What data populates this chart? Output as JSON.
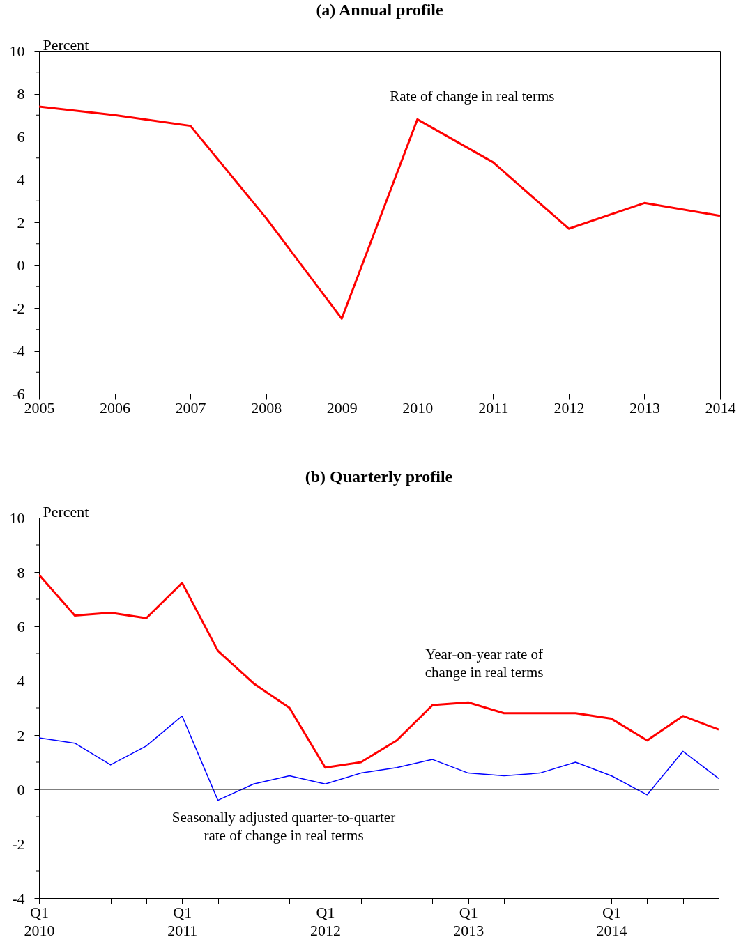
{
  "chart_data": [
    {
      "type": "line",
      "title": "(a) Annual profile",
      "ylabel": "Percent",
      "x": [
        2005,
        2006,
        2007,
        2008,
        2009,
        2010,
        2011,
        2012,
        2013,
        2014
      ],
      "series": [
        {
          "name": "Rate of change in real terms",
          "color": "#ff0000",
          "values": [
            7.4,
            7.0,
            6.5,
            2.2,
            -2.5,
            6.8,
            4.8,
            1.7,
            2.9,
            2.3
          ]
        }
      ],
      "xlim": [
        2005,
        2014
      ],
      "xticks": [
        2005,
        2006,
        2007,
        2008,
        2009,
        2010,
        2011,
        2012,
        2013,
        2014
      ],
      "ylim": [
        -6,
        10
      ],
      "yticks": [
        -6,
        {
          "value": -5,
          "label": null
        },
        -4,
        {
          "value": -3,
          "label": null
        },
        -2,
        {
          "value": -1,
          "label": null
        },
        0,
        {
          "value": 1,
          "label": null
        },
        2,
        {
          "value": 3,
          "label": null
        },
        4,
        {
          "value": 5,
          "label": null
        },
        6,
        {
          "value": 7,
          "label": null
        },
        8,
        {
          "value": 9,
          "label": null
        },
        10
      ],
      "ref_lines": [
        {
          "axis": "y",
          "value": 0,
          "color": "#000000"
        }
      ],
      "grid": false,
      "legend": false
    },
    {
      "type": "line",
      "title": "(b) Quarterly profile",
      "ylabel": "Percent",
      "categories": [
        "Q1 2010",
        null,
        null,
        null,
        "Q1 2011",
        null,
        null,
        null,
        "Q1 2012",
        null,
        null,
        null,
        "Q1 2013",
        null,
        null,
        null,
        "Q1 2014",
        null,
        null,
        null
      ],
      "series": [
        {
          "name": "Year-on-year rate of change in real terms",
          "color": "#ff0000",
          "values": [
            7.9,
            6.4,
            6.5,
            6.3,
            7.6,
            5.1,
            3.9,
            3.0,
            0.8,
            1.0,
            1.8,
            3.1,
            3.2,
            2.8,
            2.8,
            2.8,
            2.6,
            1.8,
            2.7,
            2.2
          ]
        },
        {
          "name": "Seasonally adjusted quarter-to-quarter rate of change in real terms",
          "color": "#0000ff",
          "values": [
            1.9,
            1.7,
            0.9,
            1.6,
            2.7,
            -0.4,
            0.2,
            0.5,
            0.2,
            0.6,
            0.8,
            1.1,
            0.6,
            0.5,
            0.6,
            1.0,
            0.5,
            -0.2,
            1.4,
            0.4
          ]
        }
      ],
      "ylim": [
        -4,
        10
      ],
      "yticks": [
        -4,
        {
          "value": -3,
          "label": null
        },
        -2,
        {
          "value": -1,
          "label": null
        },
        0,
        {
          "value": 1,
          "label": null
        },
        2,
        {
          "value": 3,
          "label": null
        },
        4,
        {
          "value": 5,
          "label": null
        },
        6,
        {
          "value": 7,
          "label": null
        },
        8,
        {
          "value": 9,
          "label": null
        },
        10
      ],
      "ref_lines": [
        {
          "axis": "y",
          "value": 0,
          "color": "#000000"
        }
      ],
      "grid": false,
      "legend": false
    }
  ]
}
